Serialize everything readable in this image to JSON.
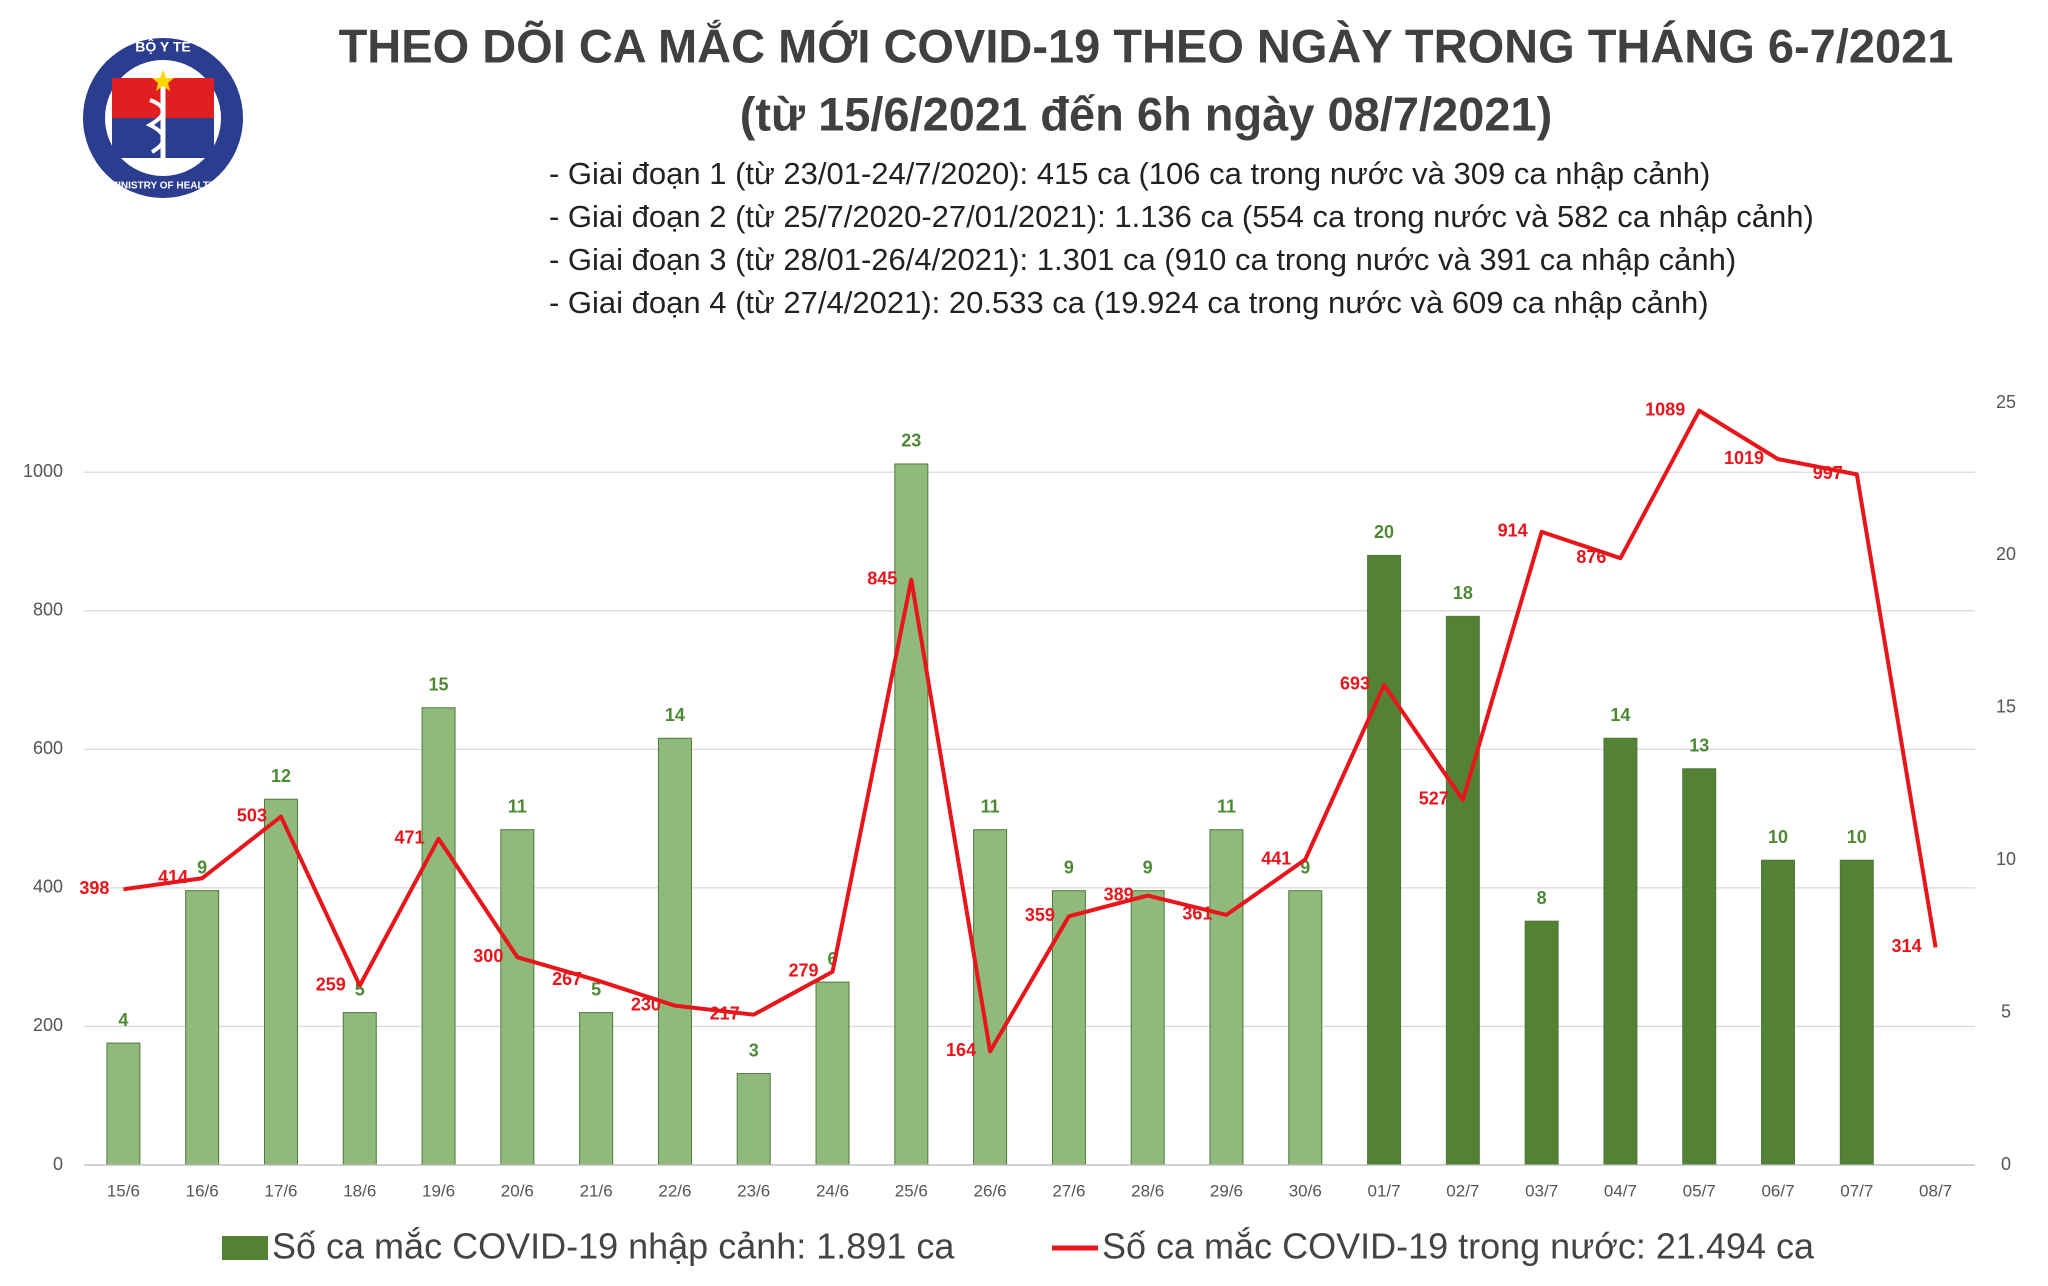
{
  "logo": {
    "top": "BỘ Y TẾ",
    "bottom": "MINISTRY OF HEALTH"
  },
  "chart_data": {
    "type": "bar-line",
    "title": "THEO DÕI CA MẮC MỚI COVID-19 THEO NGÀY TRONG THÁNG 6-7/2021",
    "subtitle": "(từ 15/6/2021 đến 6h ngày 08/7/2021)",
    "notes": [
      "- Giai đoạn 1 (từ 23/01-24/7/2020): 415 ca (106 ca trong nước và 309 ca nhập cảnh)",
      "- Giai đoạn 2 (từ 25/7/2020-27/01/2021): 1.136 ca (554 ca trong nước và 582 ca nhập cảnh)",
      "- Giai đoạn 3 (từ 28/01-26/4/2021): 1.301 ca (910 ca trong nước và 391 ca nhập cảnh)",
      "- Giai đoạn 4 (từ 27/4/2021): 20.533 ca (19.924 ca trong nước và 609 ca nhập cảnh)"
    ],
    "categories": [
      "15/6",
      "16/6",
      "17/6",
      "18/6",
      "19/6",
      "20/6",
      "21/6",
      "22/6",
      "23/6",
      "24/6",
      "25/6",
      "26/6",
      "27/6",
      "28/6",
      "29/6",
      "30/6",
      "01/7",
      "02/7",
      "03/7",
      "04/7",
      "05/7",
      "06/7",
      "07/7",
      "08/7"
    ],
    "series": [
      {
        "name": "Số ca mắc COVID-19 nhập cảnh: 1.891 ca",
        "kind": "bar",
        "axis": "y2",
        "color": "#548235",
        "colors": [
          "#8fba7c",
          "#8fba7c",
          "#8fba7c",
          "#8fba7c",
          "#8fba7c",
          "#8fba7c",
          "#8fba7c",
          "#8fba7c",
          "#8fba7c",
          "#8fba7c",
          "#8fba7c",
          "#8fba7c",
          "#8fba7c",
          "#8fba7c",
          "#8fba7c",
          "#8fba7c",
          "#548235",
          "#548235",
          "#548235",
          "#548235",
          "#548235",
          "#548235",
          "#548235",
          "#548235"
        ],
        "values": [
          4,
          9,
          12,
          5,
          15,
          11,
          5,
          14,
          3,
          6,
          23,
          11,
          9,
          9,
          11,
          9,
          20,
          18,
          8,
          14,
          13,
          10,
          10,
          null
        ]
      },
      {
        "name": "Số ca mắc COVID-19 trong nước: 21.494 ca",
        "kind": "line",
        "color": "#e8151b",
        "values": [
          398,
          414,
          503,
          259,
          471,
          300,
          267,
          230,
          217,
          279,
          845,
          164,
          359,
          389,
          361,
          441,
          693,
          527,
          914,
          876,
          1089,
          1019,
          997,
          314
        ]
      }
    ],
    "ylim": [
      0,
      1100
    ],
    "yticks": [
      0,
      200,
      400,
      600,
      800,
      1000
    ],
    "y2lim": [
      0,
      25
    ],
    "y2ticks": [
      0,
      5,
      10,
      15,
      20,
      25
    ],
    "grid": true
  }
}
